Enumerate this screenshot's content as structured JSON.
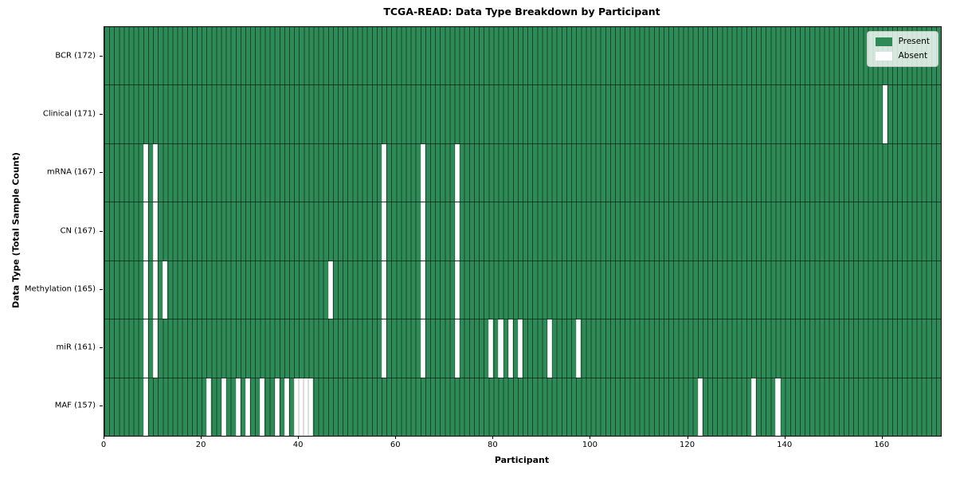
{
  "chart_data": {
    "type": "heatmap",
    "title": "TCGA-READ: Data Type Breakdown by Participant",
    "xlabel": "Participant",
    "ylabel": "Data Type (Total Sample Count)",
    "n_participants": 172,
    "x_ticks": [
      0,
      20,
      40,
      60,
      80,
      100,
      120,
      140,
      160
    ],
    "colors": {
      "present": "#2e8b57",
      "absent": "#ffffff"
    },
    "legend": [
      {
        "label": "Present",
        "color": "#2e8b57"
      },
      {
        "label": "Absent",
        "color": "#ffffff"
      }
    ],
    "rows": [
      {
        "label": "BCR",
        "total": 172,
        "display": "BCR (172)",
        "absent": []
      },
      {
        "label": "Clinical",
        "total": 171,
        "display": "Clinical (171)",
        "absent": [
          160
        ]
      },
      {
        "label": "mRNA",
        "total": 167,
        "display": "mRNA (167)",
        "absent": [
          8,
          10,
          57,
          65,
          72
        ]
      },
      {
        "label": "CN",
        "total": 167,
        "display": "CN (167)",
        "absent": [
          8,
          10,
          57,
          65,
          72
        ]
      },
      {
        "label": "Methylation",
        "total": 165,
        "display": "Methylation (165)",
        "absent": [
          8,
          10,
          12,
          46,
          57,
          65,
          72
        ]
      },
      {
        "label": "miR",
        "total": 161,
        "display": "miR (161)",
        "absent": [
          8,
          10,
          57,
          65,
          72,
          79,
          81,
          83,
          85,
          91,
          97
        ]
      },
      {
        "label": "MAF",
        "total": 157,
        "display": "MAF (157)",
        "absent": [
          8,
          21,
          24,
          27,
          29,
          32,
          35,
          37,
          39,
          40,
          41,
          42,
          122,
          133,
          138
        ]
      }
    ]
  }
}
